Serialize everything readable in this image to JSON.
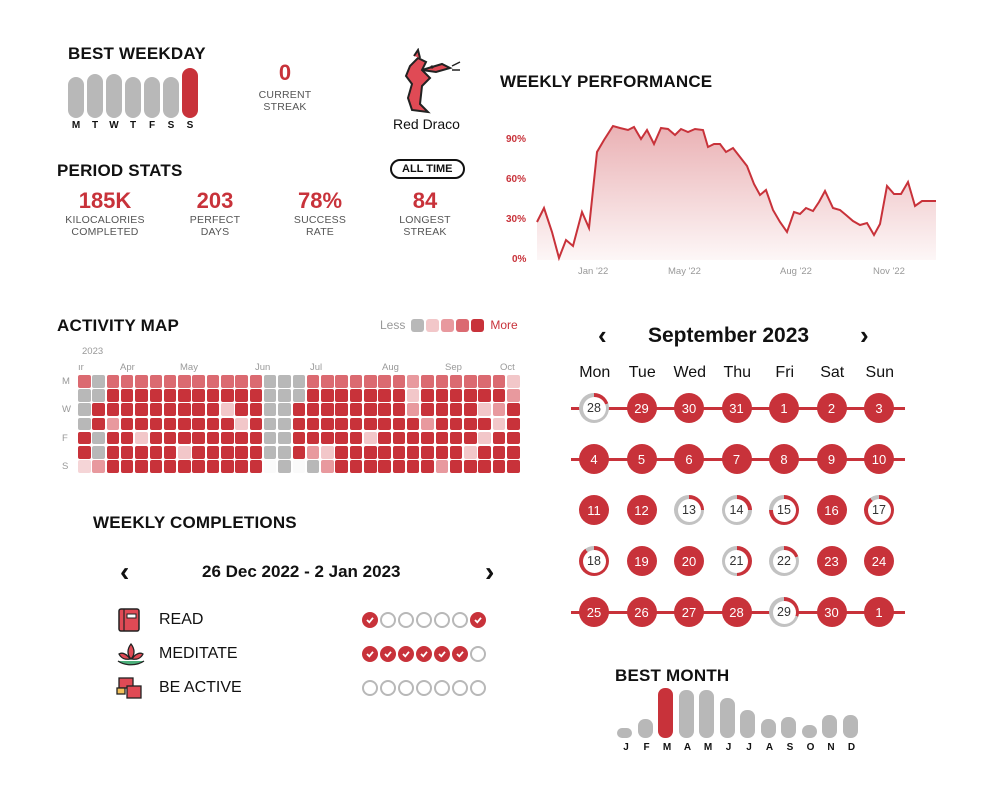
{
  "best_weekday": {
    "title": "BEST WEEKDAY",
    "days": [
      "M",
      "T",
      "W",
      "T",
      "F",
      "S",
      "S"
    ],
    "levels": [
      0.82,
      0.88,
      0.88,
      0.82,
      0.82,
      0.82,
      1.0
    ],
    "best_index": 6
  },
  "current_streak": {
    "value": "0",
    "label_line1": "CURRENT",
    "label_line2": "STREAK"
  },
  "mascot": {
    "name": "Red Draco",
    "icon": "dragon-icon"
  },
  "weekly_performance": {
    "title": "WEEKLY PERFORMANCE",
    "yticks": [
      "90%",
      "60%",
      "30%",
      "0%"
    ],
    "xticks": [
      "Jan '22",
      "May '22",
      "Aug '22",
      "Nov '22"
    ]
  },
  "period_stats": {
    "title": "PERIOD STATS",
    "filter_label": "ALL TIME",
    "stats": [
      {
        "value": "185K",
        "label1": "KILOCALORIES",
        "label2": "COMPLETED"
      },
      {
        "value": "203",
        "label1": "PERFECT",
        "label2": "DAYS"
      },
      {
        "value": "78%",
        "label1": "SUCCESS",
        "label2": "RATE"
      },
      {
        "value": "84",
        "label1": "LONGEST",
        "label2": "STREAK"
      }
    ]
  },
  "activity_map": {
    "title": "ACTIVITY MAP",
    "legend_less": "Less",
    "legend_more": "More",
    "year": "2023",
    "months": [
      "ır",
      "Apr",
      "May",
      "Jun",
      "Jul",
      "Aug",
      "Sep",
      "Oct"
    ],
    "weekday_labels": [
      "M",
      "",
      "W",
      "",
      "F",
      "",
      "S"
    ]
  },
  "weekly_completions": {
    "title": "WEEKLY COMPLETIONS",
    "range": "26 Dec 2022 - 2 Jan 2023",
    "prev": "‹",
    "next": "›",
    "habits": [
      {
        "name": "READ",
        "icon": "book-icon",
        "done": [
          1,
          0,
          0,
          0,
          0,
          0,
          1
        ]
      },
      {
        "name": "MEDITATE",
        "icon": "lotus-icon",
        "done": [
          1,
          1,
          1,
          1,
          1,
          1,
          0
        ]
      },
      {
        "name": "BE ACTIVE",
        "icon": "dumbbell-icon",
        "done": [
          0,
          0,
          0,
          0,
          0,
          0,
          0
        ]
      }
    ]
  },
  "calendar": {
    "title": "September 2023",
    "prev": "‹",
    "next": "›",
    "weekdays": [
      "Mon",
      "Tue",
      "Wed",
      "Thu",
      "Fri",
      "Sat",
      "Sun"
    ],
    "weeks": [
      [
        {
          "d": "28",
          "p": 0.2
        },
        {
          "d": "29",
          "p": 1
        },
        {
          "d": "30",
          "p": 1
        },
        {
          "d": "31",
          "p": 1
        },
        {
          "d": "1",
          "p": 1
        },
        {
          "d": "2",
          "p": 1
        },
        {
          "d": "3",
          "p": 1
        }
      ],
      [
        {
          "d": "4",
          "p": 1
        },
        {
          "d": "5",
          "p": 1
        },
        {
          "d": "6",
          "p": 1
        },
        {
          "d": "7",
          "p": 1
        },
        {
          "d": "8",
          "p": 1
        },
        {
          "d": "9",
          "p": 1
        },
        {
          "d": "10",
          "p": 1
        }
      ],
      [
        {
          "d": "11",
          "p": 1
        },
        {
          "d": "12",
          "p": 1
        },
        {
          "d": "13",
          "p": 0.25
        },
        {
          "d": "14",
          "p": 0.25
        },
        {
          "d": "15",
          "p": 0.75
        },
        {
          "d": "16",
          "p": 1
        },
        {
          "d": "17",
          "p": 0.9
        }
      ],
      [
        {
          "d": "18",
          "p": 0.9
        },
        {
          "d": "19",
          "p": 1
        },
        {
          "d": "20",
          "p": 1
        },
        {
          "d": "21",
          "p": 0.5
        },
        {
          "d": "22",
          "p": 0.2
        },
        {
          "d": "23",
          "p": 1
        },
        {
          "d": "24",
          "p": 1
        }
      ],
      [
        {
          "d": "25",
          "p": 1
        },
        {
          "d": "26",
          "p": 1
        },
        {
          "d": "27",
          "p": 1
        },
        {
          "d": "28",
          "p": 1
        },
        {
          "d": "29",
          "p": 0.3
        },
        {
          "d": "30",
          "p": 1
        },
        {
          "d": "1",
          "p": 1
        }
      ]
    ]
  },
  "best_month": {
    "title": "BEST MONTH",
    "months": [
      "J",
      "F",
      "M",
      "A",
      "M",
      "J",
      "J",
      "A",
      "S",
      "O",
      "N",
      "D"
    ],
    "levels": [
      0.2,
      0.38,
      1.0,
      0.95,
      0.95,
      0.8,
      0.55,
      0.38,
      0.42,
      0.25,
      0.45,
      0.45
    ],
    "best_index": 2
  },
  "colors": {
    "accent": "#c8323a",
    "grey": "#b8b8b8",
    "light": "#f2c7c9",
    "mid": "#e07e84"
  }
}
